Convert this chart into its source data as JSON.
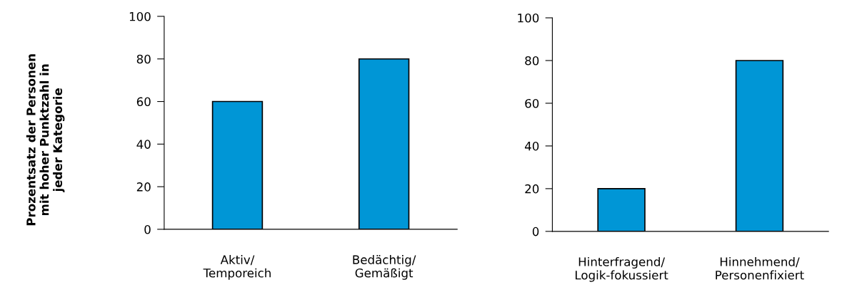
{
  "chart_data": [
    {
      "type": "bar",
      "ylabel": "Prozentsatz der Personen\nmit hoher Punktzahl in\njeder Kategorie",
      "categories": [
        "Aktiv/\nTemporeich",
        "Bedächtig/\nGemäßigt"
      ],
      "values": [
        60,
        80
      ],
      "color": "#0096d6",
      "ylim": [
        0,
        100
      ],
      "yticks": [
        0,
        20,
        40,
        60,
        80,
        100
      ],
      "grid": false,
      "legend": false
    },
    {
      "type": "bar",
      "categories": [
        "Hinterfragend/\nLogik-fokussiert",
        "Hinnehmend/\nPersonenfixiert"
      ],
      "values": [
        20,
        80
      ],
      "color": "#0096d6",
      "ylim": [
        0,
        100
      ],
      "yticks": [
        0,
        20,
        40,
        60,
        80,
        100
      ],
      "grid": false,
      "legend": false
    }
  ]
}
